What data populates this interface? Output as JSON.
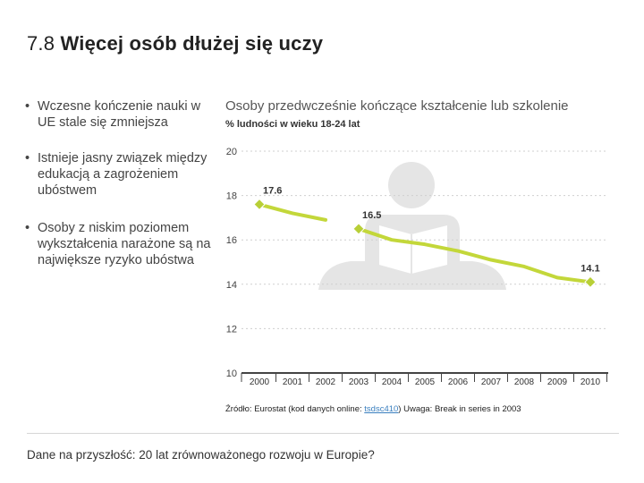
{
  "slide": {
    "number": "7.8",
    "title": "Więcej osób dłużej się uczy"
  },
  "bullets": [
    "Wczesne kończenie nauki w UE stale się zmniejsza",
    "Istnieje jasny związek między edukacją a zagrożeniem ubóstwem",
    "Osoby z niskim poziomem wykształcenia narażone są na największe ryzyko ubóstwa"
  ],
  "source": {
    "prefix": "Źródło: Eurostat (kod danych online:",
    "code": "tsdsc410",
    "suffix": ") Uwaga: Break in series in 2003"
  },
  "footer": "Dane na przyszłość: 20 lat zrównoważonego rozwoju w Europie?",
  "colors": {
    "series": "#c3d73a",
    "marker": "#b8cf37",
    "icon": "#e5e5e5",
    "axis": "#444444",
    "grid": "#cfcfcf"
  },
  "chart_data": {
    "type": "line",
    "title": "Osoby przedwcześnie kończące kształcenie lub szkolenie",
    "subtitle": "% ludności w wieku 18-24 lat",
    "categories": [
      "2000",
      "2001",
      "2002",
      "2003",
      "2004",
      "2005",
      "2006",
      "2007",
      "2008",
      "2009",
      "2010"
    ],
    "y_ticks": [
      "10",
      "12",
      "14",
      "16",
      "18",
      "20"
    ],
    "ylim": [
      10,
      20
    ],
    "series": [
      {
        "name": "2000-2002",
        "x": [
          "2000",
          "2001",
          "2002"
        ],
        "values": [
          17.6,
          17.2,
          16.9
        ]
      },
      {
        "name": "2003-2010",
        "x": [
          "2003",
          "2004",
          "2005",
          "2006",
          "2007",
          "2008",
          "2009",
          "2010"
        ],
        "values": [
          16.5,
          16.0,
          15.8,
          15.5,
          15.1,
          14.8,
          14.3,
          14.1
        ]
      }
    ],
    "labels": [
      {
        "text": "17.6",
        "year": "2000",
        "value": 17.6
      },
      {
        "text": "16.5",
        "year": "2003",
        "value": 16.5
      },
      {
        "text": "14.1",
        "year": "2010",
        "value": 14.1
      }
    ],
    "grid": "horizontal dashed",
    "icon": "person-reading-icon"
  }
}
